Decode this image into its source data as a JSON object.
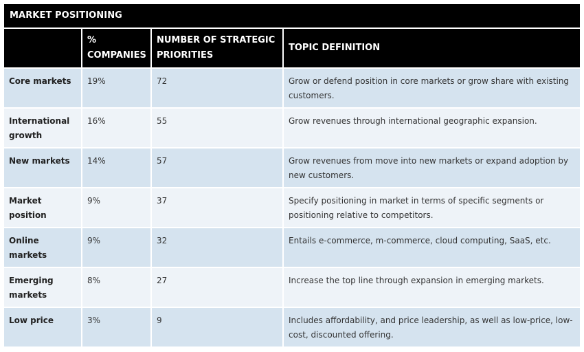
{
  "title": "MARKET POSITIONING",
  "headers": {
    "col1": "",
    "col2": "% COMPANIES",
    "col3": "NUMBER OF STRATEGIC PRIORITIES",
    "col4": "TOPIC DEFINITION"
  },
  "rows": [
    {
      "topic": "Core markets",
      "pct": "19%",
      "priorities": "72",
      "definition": "Grow or defend position in core markets or grow share with existing customers."
    },
    {
      "topic": "International growth",
      "pct": "16%",
      "priorities": "55",
      "definition": "Grow revenues through international geographic expansion."
    },
    {
      "topic": "New markets",
      "pct": "14%",
      "priorities": "57",
      "definition": "Grow revenues from move into new markets or expand adoption by new customers."
    },
    {
      "topic": "Market position",
      "pct": "9%",
      "priorities": "37",
      "definition": "Specify positioning in market in terms of specific segments or positioning relative to competitors."
    },
    {
      "topic": "Online markets",
      "pct": "9%",
      "priorities": "32",
      "definition": "Entails e-commerce, m-commerce, cloud computing, SaaS, etc."
    },
    {
      "topic": "Emerging markets",
      "pct": "8%",
      "priorities": "27",
      "definition": "Increase the top line through expansion in emerging markets."
    },
    {
      "topic": "Low price",
      "pct": "3%",
      "priorities": "9",
      "definition": "Includes affordability, and price leadership, as well as low-price, low-cost, discounted offering."
    }
  ],
  "colors": {
    "header_bg": "#000000",
    "header_text": "#ffffff",
    "row_odd_bg": "#d5e3ef",
    "row_even_bg": "#eef3f8"
  }
}
